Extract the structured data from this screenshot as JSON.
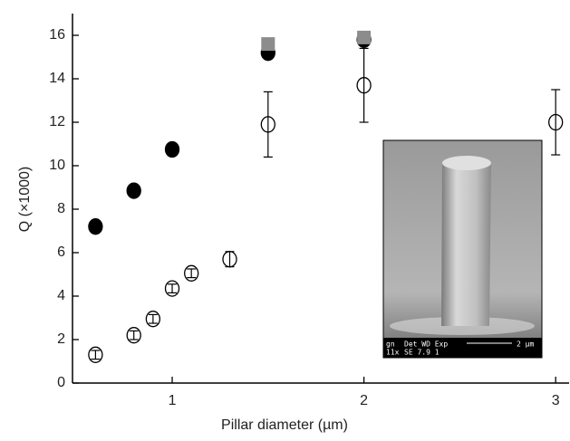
{
  "chart_data": {
    "type": "scatter",
    "x_label": "Pillar diameter (µm)",
    "y_label": "Q (×1000)",
    "xlim": [
      0.48,
      3.07
    ],
    "xticks": [
      1,
      2,
      3
    ],
    "ylim": [
      0,
      17
    ],
    "yticks": [
      0,
      2,
      4,
      6,
      8,
      10,
      12,
      14,
      16
    ],
    "series": [
      {
        "marker": "circle",
        "color": "#000000",
        "fill": "#ffffff",
        "x": [
          0.6,
          0.8,
          0.9,
          1.0,
          1.1,
          1.3,
          1.5,
          2.0,
          3.0
        ],
        "values": [
          1.3,
          2.2,
          2.95,
          4.35,
          5.05,
          5.7,
          11.9,
          13.7,
          12.0
        ],
        "errors": [
          0.2,
          0.2,
          0.2,
          0.2,
          0.2,
          0.35,
          1.5,
          1.7,
          1.5
        ]
      },
      {
        "marker": "circle",
        "color": "#000000",
        "fill": "#000000",
        "x": [
          0.6,
          0.8,
          1.0,
          1.5,
          2.0
        ],
        "values": [
          7.2,
          8.85,
          10.75,
          15.2,
          15.8
        ]
      },
      {
        "marker": "square",
        "color": "#8c8c8c",
        "fill": "#8c8c8c",
        "x": [
          1.5,
          2.0
        ],
        "values": [
          15.6,
          15.9
        ]
      }
    ]
  },
  "inset": {
    "info_left": [
      "gn",
      "11x"
    ],
    "info_mid": [
      "Det  WD  Exp",
      "SE   7.9  1"
    ],
    "scale_label": "2 µm"
  }
}
